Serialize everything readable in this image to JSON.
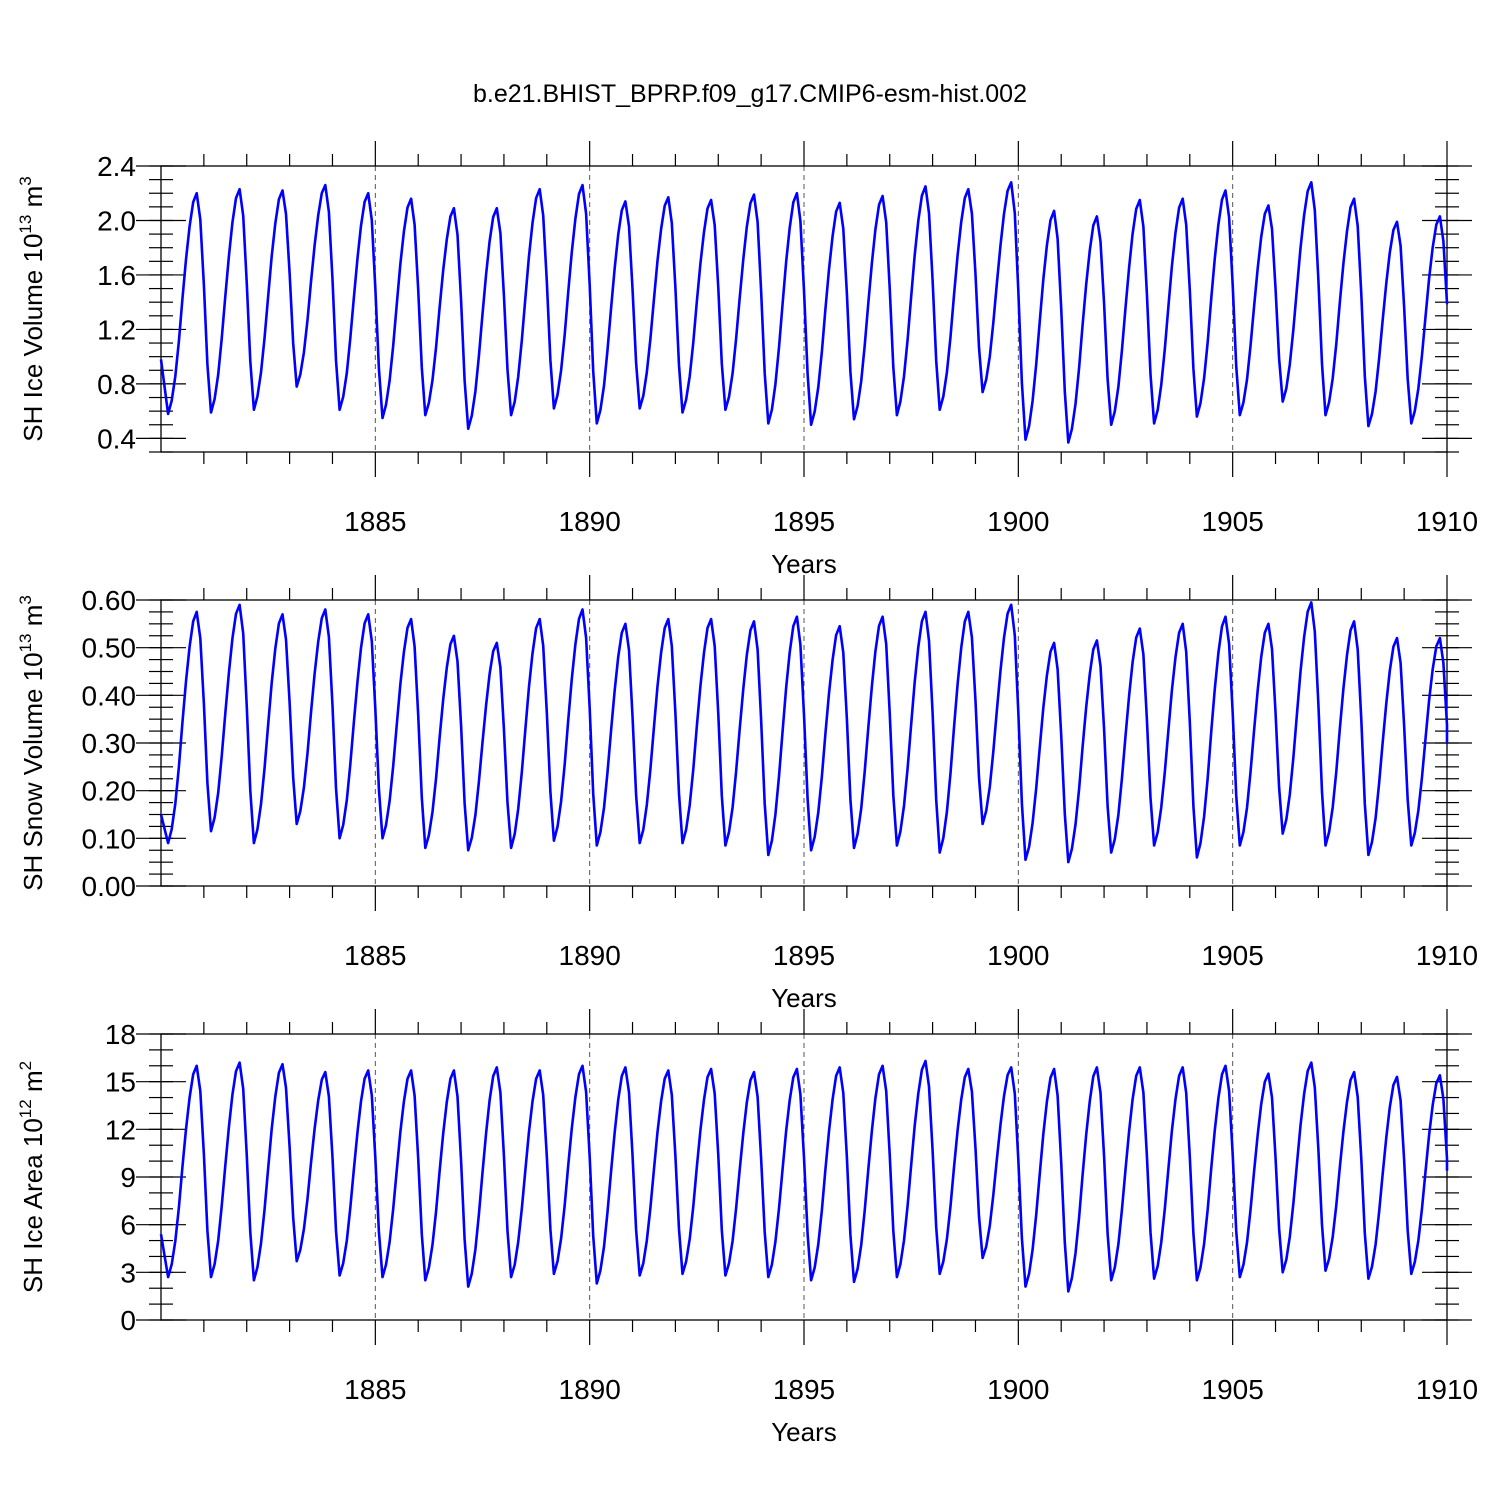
{
  "title": "b.e21.BHIST_BPRP.f09_g17.CMIP6-esm-hist.002",
  "colors": {
    "series": "#0000ff",
    "axis": "#000000"
  },
  "chart_data": [
    {
      "type": "line",
      "name": "sh-ice-volume",
      "ylabel_main": "SH Ice Volume 10",
      "ylabel_exp": "13",
      "ylabel_unit": " m",
      "ylabel_unit_exp": "3",
      "xlabel": "Years",
      "xlim": [
        1880,
        1910
      ],
      "ylim": [
        0.3,
        2.4
      ],
      "yticks": [
        0.4,
        0.8,
        1.2,
        1.6,
        2.0,
        2.4
      ],
      "ytick_labels": [
        "0.4",
        "0.8",
        "1.2",
        "1.6",
        "2.0",
        "2.4"
      ],
      "yminor_step": 0.1,
      "xticks": [
        1885,
        1890,
        1895,
        1900,
        1905,
        1910
      ],
      "xtick_labels": [
        "1885",
        "1890",
        "1895",
        "1900",
        "1905",
        "1910"
      ],
      "ref_lines": [
        1885,
        1890,
        1895,
        1900,
        1905
      ],
      "series_name": "SH Ice Volume",
      "mins": [
        0.58,
        0.59,
        0.61,
        0.78,
        0.61,
        0.55,
        0.57,
        0.47,
        0.57,
        0.62,
        0.51,
        0.62,
        0.59,
        0.61,
        0.51,
        0.5,
        0.54,
        0.57,
        0.61,
        0.74,
        0.39,
        0.37,
        0.5,
        0.51,
        0.56,
        0.57,
        0.67,
        0.57,
        0.49,
        0.51
      ],
      "maxs": [
        2.2,
        2.23,
        2.22,
        2.26,
        2.2,
        2.16,
        2.09,
        2.09,
        2.23,
        2.26,
        2.14,
        2.17,
        2.15,
        2.19,
        2.2,
        2.13,
        2.18,
        2.25,
        2.23,
        2.28,
        2.07,
        2.03,
        2.15,
        2.16,
        2.22,
        2.11,
        2.28,
        2.16,
        1.99,
        2.03
      ],
      "start": 0.98,
      "end": 1.4
    },
    {
      "type": "line",
      "name": "sh-snow-volume",
      "ylabel_main": "SH Snow Volume 10",
      "ylabel_exp": "13",
      "ylabel_unit": " m",
      "ylabel_unit_exp": "3",
      "xlabel": "Years",
      "xlim": [
        1880,
        1910
      ],
      "ylim": [
        0.0,
        0.6
      ],
      "yticks": [
        0.0,
        0.1,
        0.2,
        0.3,
        0.4,
        0.5,
        0.6
      ],
      "ytick_labels": [
        "0.00",
        "0.10",
        "0.20",
        "0.30",
        "0.40",
        "0.50",
        "0.60"
      ],
      "yminor_step": 0.025,
      "xticks": [
        1885,
        1890,
        1895,
        1900,
        1905,
        1910
      ],
      "xtick_labels": [
        "1885",
        "1890",
        "1895",
        "1900",
        "1905",
        "1910"
      ],
      "ref_lines": [
        1885,
        1890,
        1895,
        1900,
        1905
      ],
      "series_name": "SH Snow Volume",
      "mins": [
        0.09,
        0.115,
        0.09,
        0.13,
        0.1,
        0.1,
        0.08,
        0.075,
        0.08,
        0.095,
        0.085,
        0.09,
        0.09,
        0.085,
        0.065,
        0.075,
        0.08,
        0.085,
        0.07,
        0.13,
        0.055,
        0.05,
        0.07,
        0.085,
        0.06,
        0.085,
        0.11,
        0.085,
        0.065,
        0.085
      ],
      "maxs": [
        0.575,
        0.59,
        0.57,
        0.58,
        0.57,
        0.56,
        0.525,
        0.51,
        0.56,
        0.58,
        0.55,
        0.56,
        0.56,
        0.555,
        0.565,
        0.545,
        0.565,
        0.575,
        0.575,
        0.59,
        0.51,
        0.515,
        0.54,
        0.55,
        0.565,
        0.55,
        0.595,
        0.555,
        0.52,
        0.52
      ],
      "start": 0.15,
      "end": 0.3
    },
    {
      "type": "line",
      "name": "sh-ice-area",
      "ylabel_main": "SH Ice Area 10",
      "ylabel_exp": "12",
      "ylabel_unit": " m",
      "ylabel_unit_exp": "2",
      "xlabel": "Years",
      "xlim": [
        1880,
        1910
      ],
      "ylim": [
        0,
        18
      ],
      "yticks": [
        0,
        3,
        6,
        9,
        12,
        15,
        18
      ],
      "ytick_labels": [
        "0",
        "3",
        "6",
        "9",
        "12",
        "15",
        "18"
      ],
      "yminor_step": 1,
      "xticks": [
        1885,
        1890,
        1895,
        1900,
        1905,
        1910
      ],
      "xtick_labels": [
        "1885",
        "1890",
        "1895",
        "1900",
        "1905",
        "1910"
      ],
      "ref_lines": [
        1885,
        1890,
        1895,
        1900,
        1905
      ],
      "series_name": "SH Ice Area",
      "mins": [
        2.7,
        2.7,
        2.5,
        3.7,
        2.8,
        2.7,
        2.5,
        2.1,
        2.7,
        2.9,
        2.3,
        2.8,
        2.9,
        2.8,
        2.7,
        2.5,
        2.4,
        2.7,
        2.9,
        3.9,
        2.1,
        1.8,
        2.5,
        2.6,
        2.5,
        2.7,
        3.0,
        3.1,
        2.6,
        2.9
      ],
      "maxs": [
        16.0,
        16.2,
        16.1,
        15.6,
        15.7,
        15.7,
        15.7,
        15.9,
        15.7,
        16.0,
        15.9,
        15.7,
        15.8,
        15.6,
        15.8,
        15.9,
        16.0,
        16.3,
        15.8,
        15.9,
        15.8,
        15.9,
        15.9,
        15.9,
        16.0,
        15.5,
        16.2,
        15.6,
        15.3,
        15.4
      ],
      "start": 5.4,
      "end": 9.4
    }
  ]
}
